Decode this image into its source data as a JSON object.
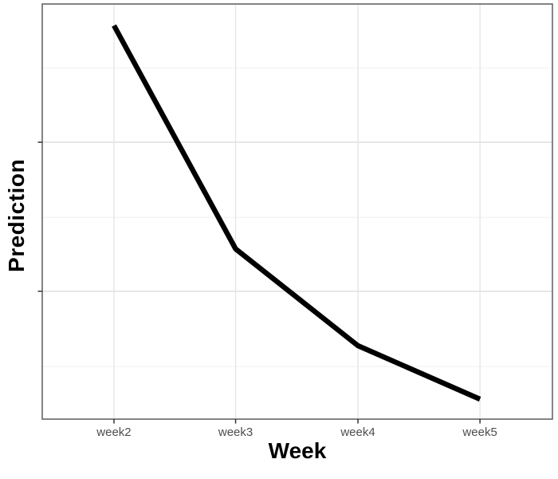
{
  "chart_data": {
    "type": "line",
    "title": "",
    "xlabel": "Week",
    "ylabel": "Prediction",
    "categories": [
      "week2",
      "week3",
      "week4",
      "week5"
    ],
    "series": [
      {
        "name": "prediction",
        "values_relative_0to1": [
          0.948,
          0.41,
          0.177,
          0.048
        ]
      }
    ],
    "y_axis": {
      "tick_labels_visible": false,
      "tick_labels": [],
      "major_gridlines_rel_from_top": [
        0.333,
        0.692
      ],
      "minor_gridlines_rel_from_top": [
        0.154,
        0.514,
        0.873
      ]
    },
    "x_axis": {
      "positions_rel": [
        0.1406,
        0.379,
        0.6188,
        0.858
      ],
      "tick_labels_visible": true
    },
    "legend": "none",
    "grid": "on",
    "panel_border": "on",
    "style": {
      "line_color": "#000000",
      "line_width": 6.5,
      "panel_border_color": "#5a5a5a",
      "grid_major_color": "#e4e4e4",
      "grid_minor_color": "#f0f0f0",
      "tick_color": "#333333",
      "tick_label_color": "#4d4d4d",
      "axis_title_color": "#000000",
      "background": "#ffffff"
    }
  }
}
